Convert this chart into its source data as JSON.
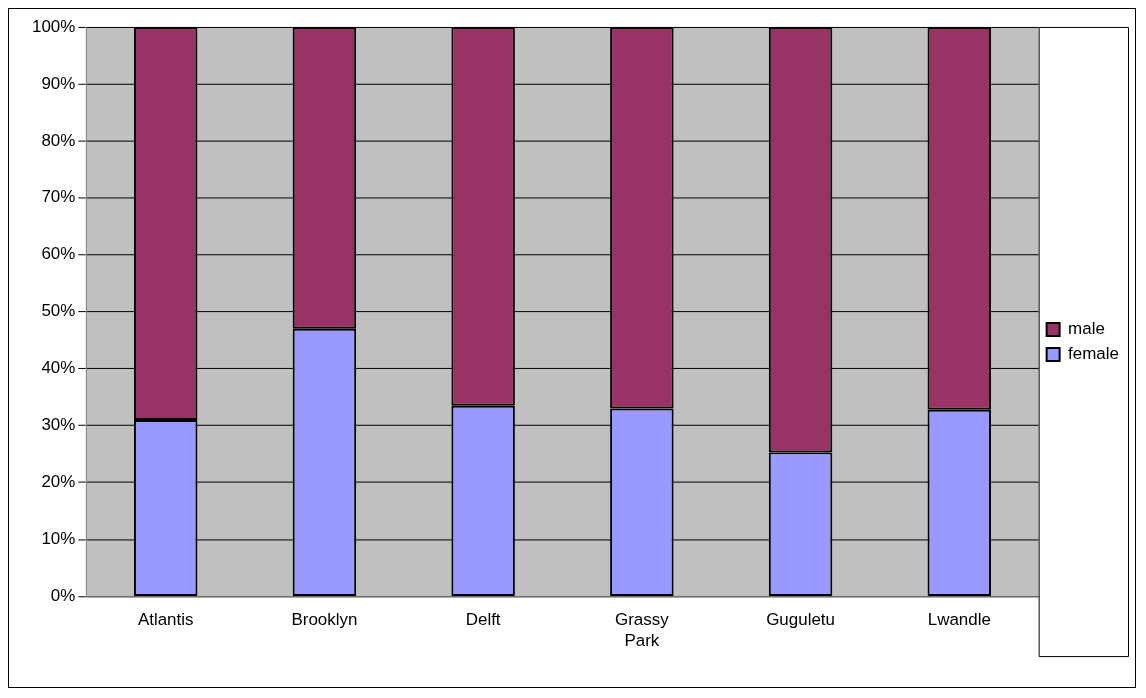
{
  "chart_data": {
    "type": "bar",
    "stacked": true,
    "categories": [
      "Atlantis",
      "Brooklyn",
      "Delft",
      "Grassy Park",
      "Guguletu",
      "Lwandle"
    ],
    "series": [
      {
        "name": "female",
        "color": "#9999ff",
        "values": [
          31,
          47,
          33.5,
          33,
          25.3,
          32.8
        ]
      },
      {
        "name": "male",
        "color": "#993366",
        "values": [
          69,
          53,
          66.5,
          67,
          74.7,
          67.2
        ]
      }
    ],
    "ylim": [
      0,
      100
    ],
    "yticks": [
      {
        "value": 0,
        "label": "0%"
      },
      {
        "value": 10,
        "label": "10%"
      },
      {
        "value": 20,
        "label": "20%"
      },
      {
        "value": 30,
        "label": "30%"
      },
      {
        "value": 40,
        "label": "40%"
      },
      {
        "value": 50,
        "label": "50%"
      },
      {
        "value": 60,
        "label": "60%"
      },
      {
        "value": 70,
        "label": "70%"
      },
      {
        "value": 80,
        "label": "80%"
      },
      {
        "value": 90,
        "label": "90%"
      },
      {
        "value": 100,
        "label": "100%"
      }
    ],
    "grid": "y",
    "legend": "right"
  }
}
